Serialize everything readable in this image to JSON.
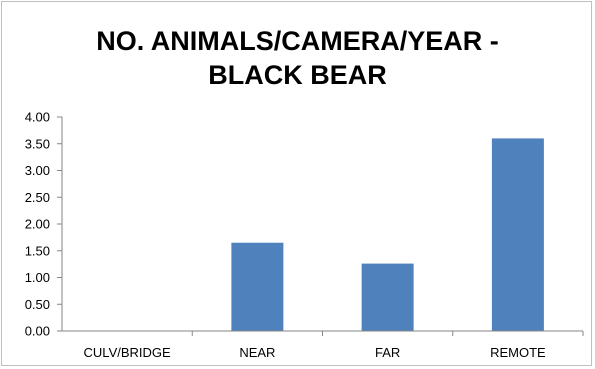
{
  "chart_data": {
    "type": "bar",
    "title_lines": [
      "NO. ANIMALS/CAMERA/YEAR -",
      "BLACK BEAR"
    ],
    "categories": [
      "CULV/BRIDGE",
      "NEAR",
      "FAR",
      "REMOTE"
    ],
    "values": [
      0.0,
      1.65,
      1.26,
      3.6
    ],
    "ylim": [
      0,
      4
    ],
    "ytick_step": 0.5,
    "ytick_labels": [
      "0.00",
      "0.50",
      "1.00",
      "1.50",
      "2.00",
      "2.50",
      "3.00",
      "3.50",
      "4.00"
    ],
    "grid": false,
    "legend": "none",
    "bar_color": "#4f81bd",
    "axis_color": "#868686"
  }
}
